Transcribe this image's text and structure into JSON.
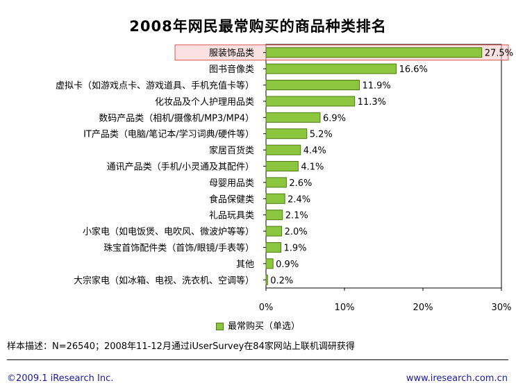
{
  "title": "2008年网民最常购买的商品种类排名",
  "chart_data": {
    "type": "bar",
    "orientation": "horizontal",
    "title": "2008年网民最常购买的商品种类排名",
    "categories": [
      "服装饰品类",
      "图书音像类",
      "虚拟卡（如游戏点卡、游戏道具、手机充值卡等）",
      "化妆品及个人护理用品类",
      "数码产品类（相机/摄像机/MP3/MP4）",
      "IT产品类（电脑/笔记本/学习词典/硬件等）",
      "家居百货类",
      "通讯产品类（手机/小灵通及其配件）",
      "母婴用品类",
      "食品保健类",
      "礼品玩具类",
      "小家电（如电饭煲、电吹风、微波炉等等）",
      "珠宝首饰配件类（首饰/眼镜/手表等）",
      "其他",
      "大宗家电（如冰箱、电视、洗衣机、空调等）"
    ],
    "values": [
      27.5,
      16.6,
      11.9,
      11.3,
      6.9,
      5.2,
      4.4,
      4.1,
      2.6,
      2.4,
      2.1,
      2.0,
      1.9,
      0.9,
      0.2
    ],
    "value_labels": [
      "27.5%",
      "16.6%",
      "11.9%",
      "11.3%",
      "6.9%",
      "5.2%",
      "4.4%",
      "4.1%",
      "2.6%",
      "2.4%",
      "2.1%",
      "2.0%",
      "1.9%",
      "0.9%",
      "0.2%"
    ],
    "series": [
      {
        "name": "最常购买（单选）"
      }
    ],
    "xlim": [
      0,
      30
    ],
    "xticks": [
      "0%",
      "10%",
      "20%",
      "30%"
    ],
    "highlighted_category": "服装饰品类",
    "grid": false,
    "legend": "bottom",
    "colors": {
      "bar": "#8cc63f",
      "bar_border": "#4d7a12",
      "highlight_fill": "#f7c8c8",
      "highlight_border": "#d9534f"
    }
  },
  "legend_label": "最常购买（单选）",
  "sample_note": "样本描述：N=26540；2008年11-12月通过iUserSurvey在84家网站上联机调研获得",
  "footer": {
    "copyright": "©2009.1 iResearch Inc.",
    "website": "www.iresearch.com.cn"
  }
}
